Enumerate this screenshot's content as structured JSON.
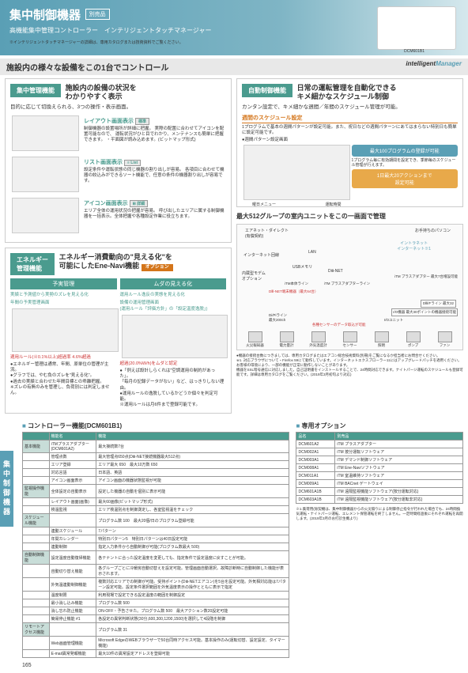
{
  "header": {
    "title": "集中制御機器",
    "badge": "別売品",
    "sub1": "高機能集中管理コントローラー",
    "sub2": "インテリジェントタッチマネージャー",
    "note": "※インテリジェントタッチマネージャーの詳細は、専用カタログまたは技術資料でご覧ください。",
    "model": "DCM601B1"
  },
  "section_title": "施設内の様々な設備をこの1台でコントロール",
  "im_logo_i": "intelligent",
  "im_logo_m": "Manager",
  "left": {
    "box1": {
      "badge": "集中管理機能",
      "title": "施設内の設備の状況を\nわかりやすく表示",
      "sub": "目的に応じて切換えられる、3つの操作・表示画面。",
      "f1_title": "レイアウト画面表示",
      "f1_badge": "標準",
      "f1_text": "制御機器の設置場所が詳細に把握。\n実際の配置に合わせてアイコンを配置可能なので、\n運転状況がひと目でわかり、メンテナンスも簡単に把握できます。\n・平面図が読み込めます。(ビットマップ形式)",
      "f2_title": "リスト画面表示",
      "f2_badge": "List",
      "f2_text": "設定条件や運転状態の同じ機器の割り出しが容易。\n各項目に合わせて機器の絞込みができるソート機能で、任意の条件の機器割り出しが容易です。",
      "f3_title": "アイコン画面表示",
      "f3_badge": "詳細",
      "f3_text": "エリア全体の運用状況の把握が容易。\n呼び出したエリアに属する制御機器を一括表示。全体把握や各種設定作業に役立ちます。"
    },
    "box2": {
      "badge": "エネルギー\n管理機能",
      "title": "エネルギー消費動向の\"見える化\"を\n可能にしたEne-Navi機能",
      "option": "オプション",
      "hdr1": "予実管理",
      "hdr2": "ムダの見える化",
      "sub1a": "実績と予測値から実勢のズレを見える化",
      "sub1b": "年間の予実管理画面",
      "sub2a": "運用ルール逸反の実態を見える化",
      "sub2b": "設備の運用管理画面\n(運用ルール「評価方針」の「設定温度逸脱」)",
      "note1": "適用ルール(※0.1%以上)超過率\n4.6%超過",
      "note2": "超過(20.0%W/h)をムダと認定",
      "bullets": "●エネルギー管理は通常、年間、原単位の管理が主流。\n●グラフでは、やむ負のズレを\"見える化\"。\n●過去の実績と合わせた年間目標との乖離把握。\n※ズレの有無のみを管理し、負荷別には判定しません。",
      "bullets2": "●「例えば設計しらくれは\"空調運用の制約があった」。\n「毎月の記録データがない」など、はっきりしない理由。\n●運用ルールの逸脱しているかどうか個々を判定可能。\n※運用ルールは月6件まで登録可能です。"
    }
  },
  "right": {
    "box1": {
      "badge": "自動制御機能",
      "title": "日常の運転管理を自動化できる\nキメ細かなスケジュール制御",
      "sub": "カンタン設定で、キメ細かな週間／年間のスケジュール管理が可能。",
      "f1_title": "週間のスケジュール設定",
      "f1_text": "1プログラムで基本の週間パターンが設定可能。また、祝日などの週間パターンにあてはまらない特別日も簡単に設定可能です。",
      "pattern_label": "●週間パターン設定画面",
      "pill1": "最大100プログラムの登録が可能",
      "pill1_note": "1プログラム毎に有効期間を設定でき、季節毎のスケジュール管理が行えます。",
      "pill2": "1日最大20アクションまで\n設定可能",
      "arrow1": "曜日メニュー",
      "arrow2": "運転時間"
    },
    "box2": {
      "title": "最大512グループの室内ユニットをこの一画面で管理",
      "labels": {
        "l1": "エアネット・ダイレクト\n(有償契約)",
        "l2": "お手持ちのパソコン",
        "l3": "イントラネット\nインターネット※1",
        "l4": "インターネット回線",
        "l5": "LAN",
        "l6": "USBメモリ",
        "l7": "内蔵型モデム\nオプション",
        "l8": "DⅢ-NET",
        "l9": "iTM プラスアダプター 最大7台増設可能",
        "l10": "iTM本体ライン",
        "l11": "iTM プラスアダプターライン",
        "l12": "DⅢ-NET端末機器（最大64台）",
        "l13": "DⅢ/Fライン\n最大32",
        "l14": "Di/Piライン\n最大200ch",
        "l15": "I/O機器 最大30ポイントの機器接続可能",
        "l16": "各種センサーのデータ取込が可能",
        "l17": "I/Oユニット"
      },
      "icons": [
        "火災報知器",
        "電力量計",
        "外気温度計",
        "センサー",
        "照明",
        "ポンプ",
        "ファン"
      ],
      "note": "●機器の接続台数につきましては、専用カタログまたはエアコン総合技術資料(別冊)をご覧になるか担当者にお問合せください。\n※1. 対応ブラウザについて・Firefox 59にて動作しています。インターネットエクスプローラー11にはアップグレードパッチを適用ください。お客様の環境により、一部の機能が正常に動作しないことがあります。\n機器をSSL暗号通信に対応しました。自己証明書をインストールすることで、24時間対応できます。ナイトパージ運転のスケジュールも登録可能です。詳細は専用カタログをご覧ください。(2019年3月初旬より対応)"
    }
  },
  "tables": {
    "t1_title": "コントローラー機能(DCM601B1)",
    "t2_title": "専用オプション",
    "t1_headers": [
      "",
      "機能名",
      "機能"
    ],
    "t1_rows": [
      [
        "基本機能",
        "iTMプラスアダプター(DCM601A2)",
        "最大接続数7台"
      ],
      [
        "",
        "管理点数",
        "最大管理点650点(DⅢ-NET接続機器最大512点)"
      ],
      [
        "",
        "エリア登録",
        "エリア最大 650　最大10万数 650"
      ],
      [
        "",
        "対応言語",
        "日本語、英語"
      ],
      [
        "",
        "アイコン画面表示",
        "アイコン画面の機器状態監視が可能"
      ],
      [
        "監視操作機能",
        "全体設定の自動表示",
        "設定した機器の自動を個別に表示可能"
      ],
      [
        "",
        "レイアウト画面(画像)",
        "最大60画像(ビットマップ形式)"
      ],
      [
        "",
        "検温監視",
        "エリア検温別点を制御測定し、各室監視温をチェック"
      ],
      [
        "スケジュール機能",
        "",
        "プログラム数 100　最大20個/日のプログラム登録可能"
      ],
      [
        "",
        "連動スケジュール",
        "7パターン"
      ],
      [
        "",
        "年間カレンダー",
        "特別日パターン5　特別日パターンは40日設定可能"
      ],
      [
        "",
        "連動制御",
        "指定入力条件から自動制御が可能(プログラム数最大 500)"
      ],
      [
        "自動制御機能",
        "設定温度自動復帰機能",
        "各テナントに合った設定温度を変更しても、指定条件で設定温度に戻すことが可能。"
      ],
      [
        "",
        "自動切り替え機能",
        "各グループごとに冷暖房自動切替えを設定可能。管理画面自動選択。故障診断時に自動制御した機能が表示されます。"
      ],
      [
        "",
        "外気温連動制御機能",
        "複数対応エリアでの制御が可能。受持ポイント(DⅢ-NETエアコン)を5台を設定可能。外気相対応能は7パターン設定可能。設定条件選択範囲を外気温度表示の操作とともに表示で指定"
      ],
      [
        "",
        "温度制限",
        "利用現場で設定できる設定温度の範囲を制御設定"
      ],
      [
        "",
        "最小消し込み機能",
        "プログラム数 500"
      ],
      [
        "",
        "消し忘れ防止機能",
        "ON-OFF・予告させた。プログラム数 500　最大アクション数20設定可能"
      ],
      [
        "",
        "簡易停止機能 #1",
        "各設定の異常判断状態(30分,600,300,1200,1500)を選択して4段階を制御"
      ],
      [
        "リモートアクセス機能",
        "",
        "プログラム数 31"
      ],
      [
        "",
        "Web画面管理機能",
        "Microsoft EdgeのWEBブラウザーで50台同時アクセス可能。基本操作のみ(運転切替、設定設定、タイマー機能)"
      ],
      [
        "",
        "E-mail異常発報機能",
        "最大10件の異常設定アドレスを登録可能"
      ]
    ],
    "t2_headers": [
      "品名",
      "別売品"
    ],
    "t2_rows": [
      [
        "DCM601A2",
        "iTM プラスアダプター"
      ],
      [
        "DCM002A1",
        "iTM 按分運転ソフトウェア"
      ],
      [
        "DCM003A1",
        "iTM デマンド制御ソフトウェア"
      ],
      [
        "DCM008A1",
        "iTM Ene-Naviソフトウェア"
      ],
      [
        "DCM011A1",
        "iTM 室温維持ソフトウェア"
      ],
      [
        "DCM009A1",
        "iTM BACnet ゲートウェイ"
      ],
      [
        "DCM601A1B",
        "iTM 遠隔監視機能ソフトウェア(按分運転対応)"
      ],
      [
        "DCM603A1B",
        "iTM 遠隔監視機能ソフトウェア(按分運転非対応)"
      ]
    ],
    "footnote": "※1.集荷用(除契機は、集中制御機器からの火災隔りによる制御停止指令が行われた場合でも、24時間換気運転・ナイトパージ運転、エレメント保管運転を終了しません。一定時間経過後にそれぞれ運転を再開します。(2019年3月のお打診生機より)"
  },
  "sidebar": "集中制御機器",
  "page": "165"
}
